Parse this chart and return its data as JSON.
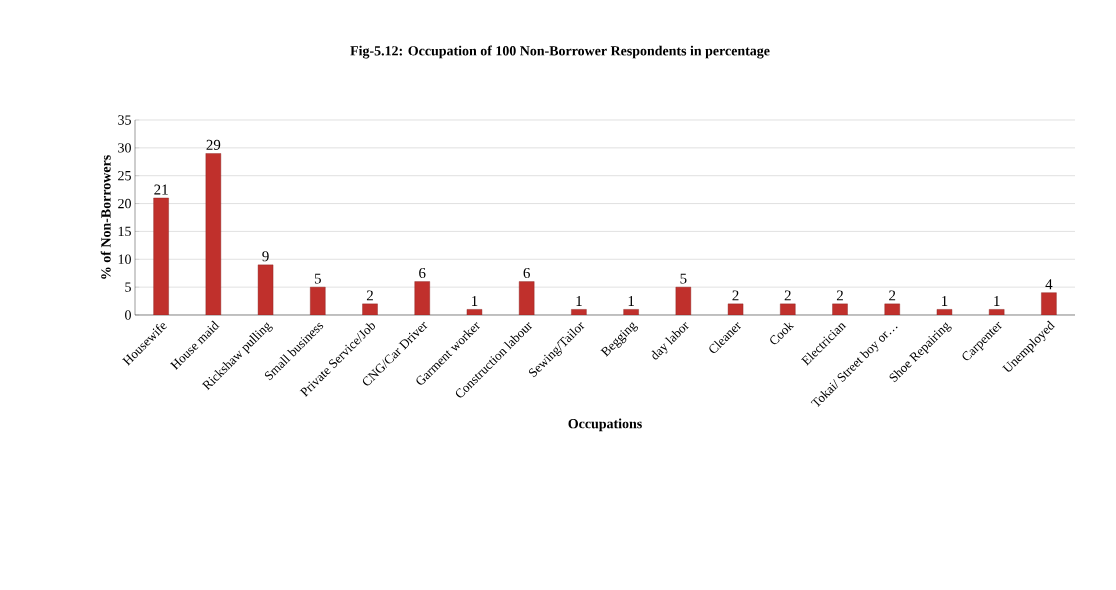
{
  "chart_data": {
    "type": "bar",
    "title": "Fig-5.12: Occupation of 100 Non-Borrower Respondents in percentage",
    "xlabel": "Occupations",
    "ylabel": "% of Non-Borrowers",
    "categories": [
      "Housewife",
      "House maid",
      "Rickshaw pulling",
      "Small business",
      "Private Service/Job",
      "CNG/Car Driver",
      "Garment worker",
      "Construction labour",
      "Sewing/Tailor",
      "Begging",
      "day labor",
      "Cleaner",
      "Cook",
      "Electrician",
      "Tokai/ Street boy or…",
      "Shoe Repairing",
      "Carpenter",
      "Unemployed"
    ],
    "values": [
      21,
      29,
      9,
      5,
      2,
      6,
      1,
      6,
      1,
      1,
      5,
      2,
      2,
      2,
      2,
      1,
      1,
      4
    ],
    "color": "#c0302c",
    "ylim": [
      0,
      35
    ],
    "yticks": [
      0,
      5,
      10,
      15,
      20,
      25,
      30,
      35
    ],
    "grid": "y",
    "data_labels": true
  }
}
